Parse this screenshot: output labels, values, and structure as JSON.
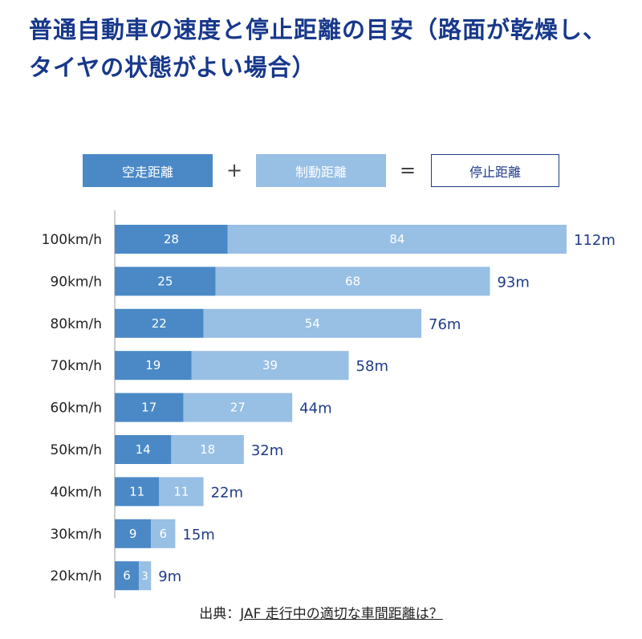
{
  "title": "普通自動車の速度と停止距離の目安（路面が乾燥し、タイヤの状態がよい場合）",
  "legend": {
    "idle": "空走距離",
    "plus": "+",
    "brake": "制動距離",
    "equals": "=",
    "total": "停止距離"
  },
  "source": {
    "prefix": "出典：",
    "link": "JAF 走行中の適切な車間距離は？"
  },
  "colors": {
    "idle": "#4a89c6",
    "brake": "#98bfe4",
    "total_label": "#1f3c88",
    "title": "#17388b"
  },
  "chart_data": {
    "type": "bar",
    "orientation": "horizontal",
    "stacked": true,
    "categories": [
      "100km/h",
      "90km/h",
      "80km/h",
      "70km/h",
      "60km/h",
      "50km/h",
      "40km/h",
      "30km/h",
      "20km/h"
    ],
    "series": [
      {
        "name": "空走距離",
        "values": [
          28,
          25,
          22,
          19,
          17,
          14,
          11,
          9,
          6
        ]
      },
      {
        "name": "制動距離",
        "values": [
          84,
          68,
          54,
          39,
          27,
          18,
          11,
          6,
          3
        ]
      }
    ],
    "total_labels": [
      "112m",
      "93m",
      "76m",
      "58m",
      "44m",
      "32m",
      "22m",
      "15m",
      "9m"
    ],
    "xlim": [
      0,
      112
    ],
    "legend_position": "top",
    "grid": false
  }
}
